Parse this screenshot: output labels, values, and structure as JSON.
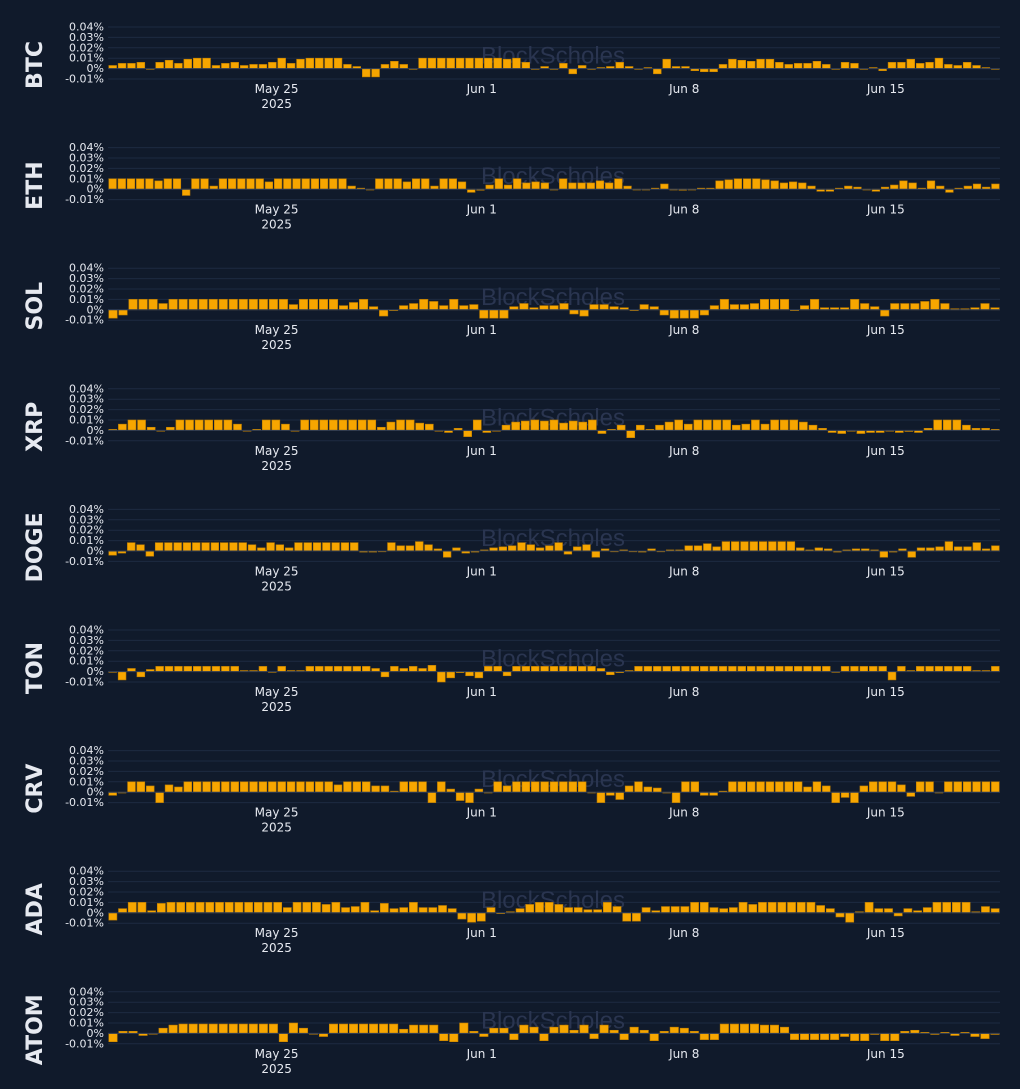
{
  "watermark": "BlockScholes",
  "colors": {
    "background": "#101a2b",
    "bar": "#f7a600",
    "bar_edge": "#c07f00",
    "grid": "#1d2a42",
    "text": "#e6e9f0",
    "watermark": "#2a3550"
  },
  "chart_data": [
    {
      "type": "bar",
      "label": "BTC",
      "ylim": [
        -0.01,
        0.04
      ],
      "yticks": [
        "0.04%",
        "0.03%",
        "0.02%",
        "0.01%",
        "0%",
        "-0.01%"
      ],
      "xticks": [
        {
          "label": "May 25",
          "sub": "2025"
        },
        {
          "label": "Jun 1"
        },
        {
          "label": "Jun 8"
        },
        {
          "label": "Jun 15"
        }
      ],
      "values": [
        0.003,
        0.005,
        0.005,
        0.006,
        0,
        0.006,
        0.008,
        0.005,
        0.009,
        0.01,
        0.01,
        0.003,
        0.005,
        0.006,
        0.003,
        0.004,
        0.004,
        0.006,
        0.01,
        0.005,
        0.009,
        0.01,
        0.01,
        0.01,
        0.01,
        0.004,
        0.002,
        -0.008,
        -0.008,
        0.004,
        0.007,
        0.004,
        0,
        0.01,
        0.01,
        0.01,
        0.01,
        0.01,
        0.01,
        0.01,
        0.01,
        0.01,
        0.009,
        0.01,
        0.006,
        0,
        0.002,
        0,
        0.005,
        -0.005,
        0.003,
        0,
        0.001,
        0.002,
        0.006,
        0.002,
        0,
        0.001,
        -0.005,
        0.009,
        0.002,
        0.002,
        -0.002,
        -0.003,
        -0.003,
        0.004,
        0.009,
        0.008,
        0.007,
        0.009,
        0.009,
        0.006,
        0.004,
        0.005,
        0.005,
        0.007,
        0.004,
        0,
        0.006,
        0.005,
        0,
        0.001,
        -0.002,
        0.006,
        0.006,
        0.009,
        0.005,
        0.006,
        0.01,
        0.004,
        0.003,
        0.006,
        0.003,
        0.001,
        0
      ]
    },
    {
      "type": "bar",
      "label": "ETH",
      "ylim": [
        -0.01,
        0.04
      ],
      "yticks": [
        "0.04%",
        "0.03%",
        "0.02%",
        "0.01%",
        "0%",
        "-0.01%"
      ],
      "xticks": [
        {
          "label": "May 25",
          "sub": "2025"
        },
        {
          "label": "Jun 1"
        },
        {
          "label": "Jun 8"
        },
        {
          "label": "Jun 15"
        }
      ],
      "values": [
        0.01,
        0.01,
        0.01,
        0.01,
        0.01,
        0.008,
        0.01,
        0.01,
        -0.006,
        0.01,
        0.01,
        0.003,
        0.01,
        0.01,
        0.01,
        0.01,
        0.01,
        0.007,
        0.01,
        0.01,
        0.01,
        0.01,
        0.01,
        0.01,
        0.01,
        0.01,
        0.003,
        0.001,
        0,
        0.01,
        0.01,
        0.01,
        0.007,
        0.01,
        0.01,
        0.003,
        0.01,
        0.01,
        0.007,
        -0.003,
        -0.001,
        0.004,
        0.01,
        0.004,
        0.01,
        0.006,
        0.007,
        0.006,
        0,
        0.01,
        0.006,
        0.006,
        0.006,
        0.008,
        0.006,
        0.01,
        0.003,
        0,
        0,
        0.001,
        0.005,
        0,
        -0.001,
        0,
        0.001,
        0.001,
        0.008,
        0.009,
        0.01,
        0.01,
        0.01,
        0.009,
        0.008,
        0.006,
        0.007,
        0.006,
        0.003,
        -0.002,
        -0.002,
        0.001,
        0.003,
        0.002,
        0,
        -0.002,
        0.002,
        0.004,
        0.008,
        0.006,
        0.001,
        0.008,
        0.003,
        -0.003,
        0.001,
        0.003,
        0.005,
        0.002,
        0.005
      ]
    },
    {
      "type": "bar",
      "label": "SOL",
      "ylim": [
        -0.01,
        0.04
      ],
      "yticks": [
        "0.04%",
        "0.03%",
        "0.02%",
        "0.01%",
        "0%",
        "-0.01%"
      ],
      "xticks": [
        {
          "label": "May 25",
          "sub": "2025"
        },
        {
          "label": "Jun 1"
        },
        {
          "label": "Jun 8"
        },
        {
          "label": "Jun 15"
        }
      ],
      "values": [
        -0.008,
        -0.005,
        0.01,
        0.01,
        0.01,
        0.006,
        0.01,
        0.01,
        0.01,
        0.01,
        0.01,
        0.01,
        0.01,
        0.01,
        0.01,
        0.01,
        0.01,
        0.01,
        0.005,
        0.01,
        0.01,
        0.01,
        0.01,
        0.004,
        0.007,
        0.01,
        0.003,
        -0.006,
        0,
        0.004,
        0.006,
        0.01,
        0.008,
        0.004,
        0.01,
        0.004,
        0.005,
        -0.008,
        -0.008,
        -0.008,
        0.003,
        0.006,
        0.002,
        0.004,
        0.004,
        0.006,
        -0.004,
        -0.006,
        0.005,
        0.005,
        0.003,
        0.002,
        0,
        0.005,
        0.003,
        -0.005,
        -0.008,
        -0.008,
        -0.008,
        -0.005,
        0.004,
        0.01,
        0.005,
        0.005,
        0.006,
        0.01,
        0.01,
        0.01,
        0,
        0.004,
        0.01,
        0.002,
        0.002,
        0.002,
        0.01,
        0.006,
        0.003,
        -0.006,
        0.006,
        0.006,
        0.006,
        0.008,
        0.01,
        0.006,
        0.001,
        0.001,
        0.002,
        0.006,
        0.002
      ]
    },
    {
      "type": "bar",
      "label": "XRP",
      "ylim": [
        -0.01,
        0.04
      ],
      "yticks": [
        "0.04%",
        "0.03%",
        "0.02%",
        "0.01%",
        "0%",
        "-0.01%"
      ],
      "xticks": [
        {
          "label": "May 25",
          "sub": "2025"
        },
        {
          "label": "Jun 1"
        },
        {
          "label": "Jun 8"
        },
        {
          "label": "Jun 15"
        }
      ],
      "values": [
        0.001,
        0.006,
        0.01,
        0.01,
        0.003,
        0,
        0.003,
        0.01,
        0.01,
        0.01,
        0.01,
        0.01,
        0.01,
        0.006,
        0,
        0.001,
        0.01,
        0.01,
        0.006,
        0,
        0.01,
        0.01,
        0.01,
        0.01,
        0.01,
        0.01,
        0.01,
        0.01,
        0.003,
        0.008,
        0.01,
        0.01,
        0.007,
        0.006,
        0,
        -0.002,
        0.002,
        -0.006,
        0.01,
        -0.002,
        0,
        0.005,
        0.008,
        0.009,
        0.01,
        0.009,
        0.01,
        0.007,
        0.009,
        0.008,
        0.01,
        -0.003,
        0.001,
        0.005,
        -0.007,
        0.005,
        0.001,
        0.005,
        0.008,
        0.01,
        0.006,
        0.01,
        0.01,
        0.01,
        0.01,
        0.005,
        0.006,
        0.01,
        0.006,
        0.01,
        0.01,
        0.01,
        0.008,
        0.005,
        0.002,
        -0.002,
        -0.003,
        0,
        -0.003,
        -0.002,
        -0.002,
        0,
        -0.002,
        -0.001,
        -0.002,
        0.002,
        0.01,
        0.01,
        0.01,
        0.005,
        0.002,
        0.002,
        0.001
      ]
    },
    {
      "type": "bar",
      "label": "DOGE",
      "ylim": [
        -0.01,
        0.04
      ],
      "yticks": [
        "0.04%",
        "0.03%",
        "0.02%",
        "0.01%",
        "0%",
        "-0.01%"
      ],
      "xticks": [
        {
          "label": "May 25",
          "sub": "2025"
        },
        {
          "label": "Jun 1"
        },
        {
          "label": "Jun 8"
        },
        {
          "label": "Jun 15"
        }
      ],
      "values": [
        -0.004,
        -0.002,
        0.008,
        0.006,
        -0.005,
        0.008,
        0.008,
        0.008,
        0.008,
        0.008,
        0.008,
        0.008,
        0.008,
        0.008,
        0.008,
        0.006,
        0.003,
        0.008,
        0.006,
        0.003,
        0.008,
        0.008,
        0.008,
        0.008,
        0.008,
        0.008,
        0.008,
        -0.001,
        -0.001,
        0,
        0.008,
        0.005,
        0.005,
        0.009,
        0.006,
        0.002,
        -0.006,
        0.003,
        -0.002,
        -0.001,
        0.001,
        0.003,
        0.004,
        0.005,
        0.008,
        0.006,
        0.003,
        0.005,
        0.008,
        -0.003,
        0.004,
        0.006,
        -0.006,
        0.002,
        0,
        0.001,
        0,
        -0.001,
        0.002,
        0,
        0.001,
        0.001,
        0.005,
        0.005,
        0.007,
        0.004,
        0.009,
        0.009,
        0.009,
        0.009,
        0.009,
        0.009,
        0.009,
        0.009,
        0.003,
        0.001,
        0.003,
        0.002,
        -0.001,
        0.001,
        0.002,
        0.002,
        0.001,
        -0.006,
        -0.001,
        0.002,
        -0.006,
        0.003,
        0.003,
        0.004,
        0.009,
        0.004,
        0.004,
        0.008,
        0.002,
        0.005
      ]
    },
    {
      "type": "bar",
      "label": "TON",
      "ylim": [
        -0.01,
        0.04
      ],
      "yticks": [
        "0.04%",
        "0.03%",
        "0.02%",
        "0.01%",
        "0%",
        "-0.01%"
      ],
      "xticks": [
        {
          "label": "May 25",
          "sub": "2025"
        },
        {
          "label": "Jun 1"
        },
        {
          "label": "Jun 8"
        },
        {
          "label": "Jun 15"
        }
      ],
      "values": [
        0,
        -0.008,
        0.003,
        -0.005,
        0.002,
        0.005,
        0.005,
        0.005,
        0.005,
        0.005,
        0.005,
        0.005,
        0.005,
        0.005,
        0.001,
        0.001,
        0.005,
        0,
        0.005,
        0.001,
        0.001,
        0.005,
        0.005,
        0.005,
        0.005,
        0.005,
        0.005,
        0.005,
        0.003,
        -0.005,
        0.005,
        0.003,
        0.005,
        0.003,
        0.006,
        -0.01,
        -0.006,
        -0.001,
        -0.004,
        -0.006,
        0.005,
        0.005,
        -0.004,
        0.005,
        0.005,
        0.005,
        0.005,
        0.005,
        0.005,
        0.005,
        0.005,
        0.005,
        0.003,
        -0.003,
        -0.001,
        0.001,
        0.005,
        0.005,
        0.005,
        0.005,
        0.005,
        0.005,
        0.005,
        0.005,
        0.005,
        0.005,
        0.005,
        0.005,
        0.005,
        0.005,
        0.005,
        0.005,
        0.005,
        0.005,
        0.005,
        0.005,
        0.005,
        0,
        0.005,
        0.005,
        0.005,
        0.005,
        0.005,
        -0.008,
        0.005,
        0.001,
        0.005,
        0.005,
        0.005,
        0.005,
        0.005,
        0.005,
        0.001,
        0.001,
        0.005
      ]
    },
    {
      "type": "bar",
      "label": "CRV",
      "ylim": [
        -0.01,
        0.04
      ],
      "yticks": [
        "0.04%",
        "0.03%",
        "0.02%",
        "0.01%",
        "0%",
        "-0.01%"
      ],
      "xticks": [
        {
          "label": "May 25",
          "sub": "2025"
        },
        {
          "label": "Jun 1"
        },
        {
          "label": "Jun 8"
        },
        {
          "label": "Jun 15"
        }
      ],
      "values": [
        -0.003,
        0,
        0.01,
        0.01,
        0.006,
        -0.01,
        0.007,
        0.005,
        0.01,
        0.01,
        0.01,
        0.01,
        0.01,
        0.01,
        0.01,
        0.01,
        0.01,
        0.01,
        0.01,
        0.01,
        0.01,
        0.01,
        0.01,
        0.01,
        0.007,
        0.01,
        0.01,
        0.01,
        0.006,
        0.006,
        0.001,
        0.01,
        0.01,
        0.01,
        -0.01,
        0.01,
        0.003,
        -0.008,
        -0.01,
        0.003,
        0,
        0.01,
        0.006,
        0.01,
        0.01,
        0.01,
        0.01,
        0.01,
        0.01,
        0.01,
        0.01,
        0,
        -0.01,
        -0.003,
        -0.007,
        0.006,
        0.01,
        0.005,
        0.004,
        0,
        -0.01,
        0.01,
        0.01,
        -0.003,
        -0.003,
        0.001,
        0.01,
        0.01,
        0.01,
        0.01,
        0.01,
        0.01,
        0.01,
        0.01,
        0.005,
        0.01,
        0.006,
        -0.01,
        -0.005,
        -0.01,
        0.006,
        0.01,
        0.01,
        0.01,
        0.007,
        -0.004,
        0.01,
        0.01,
        0,
        0.01,
        0.01,
        0.01,
        0.01,
        0.01,
        0.01
      ]
    },
    {
      "type": "bar",
      "label": "ADA",
      "ylim": [
        -0.01,
        0.04
      ],
      "yticks": [
        "0.04%",
        "0.03%",
        "0.02%",
        "0.01%",
        "0%",
        "-0.01%"
      ],
      "xticks": [
        {
          "label": "May 25",
          "sub": "2025"
        },
        {
          "label": "Jun 1"
        },
        {
          "label": "Jun 8"
        },
        {
          "label": "Jun 15"
        }
      ],
      "values": [
        -0.007,
        0.004,
        0.01,
        0.01,
        0.002,
        0.009,
        0.01,
        0.01,
        0.01,
        0.01,
        0.01,
        0.01,
        0.01,
        0.01,
        0.01,
        0.01,
        0.01,
        0.01,
        0.005,
        0.01,
        0.01,
        0.01,
        0.008,
        0.01,
        0.005,
        0.006,
        0.01,
        0.002,
        0.009,
        0.004,
        0.005,
        0.01,
        0.005,
        0.005,
        0.007,
        0.004,
        -0.006,
        -0.009,
        -0.008,
        0.005,
        0,
        0.001,
        0.004,
        0.008,
        0.01,
        0.01,
        0.008,
        0.005,
        0.005,
        0.003,
        0.003,
        0.01,
        0.006,
        -0.008,
        -0.008,
        0.005,
        0.002,
        0.006,
        0.006,
        0.006,
        0.01,
        0.01,
        0.005,
        0.004,
        0.005,
        0.01,
        0.008,
        0.01,
        0.01,
        0.01,
        0.01,
        0.01,
        0.01,
        0.007,
        0.004,
        -0.004,
        -0.009,
        0.001,
        0.01,
        0.004,
        0.004,
        -0.003,
        0.004,
        0.002,
        0.005,
        0.01,
        0.01,
        0.01,
        0.01,
        0.001,
        0.006,
        0.004
      ]
    },
    {
      "type": "bar",
      "label": "ATOM",
      "ylim": [
        -0.01,
        0.04
      ],
      "yticks": [
        "0.04%",
        "0.03%",
        "0.02%",
        "0.01%",
        "0%",
        "-0.01%"
      ],
      "xticks": [
        {
          "label": "May 25",
          "sub": "2025"
        },
        {
          "label": "Jun 1"
        },
        {
          "label": "Jun 8"
        },
        {
          "label": "Jun 15"
        }
      ],
      "values": [
        -0.008,
        0.002,
        0.002,
        -0.002,
        0,
        0.005,
        0.008,
        0.009,
        0.009,
        0.009,
        0.009,
        0.009,
        0.009,
        0.009,
        0.009,
        0.009,
        0.009,
        -0.008,
        0.01,
        0.005,
        0,
        -0.003,
        0.009,
        0.009,
        0.009,
        0.009,
        0.009,
        0.009,
        0.009,
        0.004,
        0.008,
        0.008,
        0.008,
        -0.007,
        -0.008,
        0.01,
        0.002,
        -0.003,
        0.005,
        0.005,
        -0.006,
        0.008,
        0.006,
        -0.007,
        0.006,
        0.008,
        0.003,
        0.008,
        -0.005,
        0.008,
        0.003,
        -0.006,
        0.006,
        0.003,
        -0.007,
        0.002,
        0.006,
        0.005,
        0.002,
        -0.006,
        -0.006,
        0.009,
        0.009,
        0.009,
        0.009,
        0.008,
        0.008,
        0.006,
        -0.006,
        -0.006,
        -0.006,
        -0.006,
        -0.006,
        -0.003,
        -0.007,
        -0.007,
        -0.001,
        -0.007,
        -0.007,
        0.002,
        0.003,
        0.001,
        -0.001,
        0.001,
        -0.002,
        0.001,
        -0.003,
        -0.005,
        -0.001
      ]
    }
  ]
}
